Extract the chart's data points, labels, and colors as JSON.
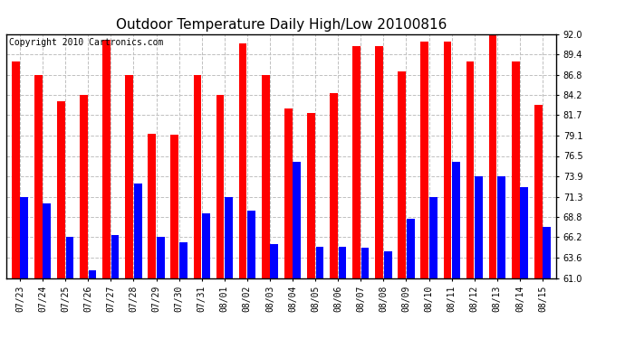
{
  "title": "Outdoor Temperature Daily High/Low 20100816",
  "copyright": "Copyright 2010 Cartronics.com",
  "dates": [
    "07/23",
    "07/24",
    "07/25",
    "07/26",
    "07/27",
    "07/28",
    "07/29",
    "07/30",
    "07/31",
    "08/01",
    "08/02",
    "08/03",
    "08/04",
    "08/05",
    "08/06",
    "08/07",
    "08/08",
    "08/09",
    "08/10",
    "08/11",
    "08/12",
    "08/13",
    "08/14",
    "08/15"
  ],
  "highs": [
    88.5,
    86.8,
    83.5,
    84.2,
    91.2,
    86.8,
    79.3,
    79.2,
    86.8,
    84.2,
    90.8,
    86.8,
    82.5,
    82.0,
    84.5,
    90.5,
    90.5,
    87.2,
    91.0,
    91.0,
    88.5,
    92.0,
    88.5,
    83.0
  ],
  "lows": [
    71.3,
    70.5,
    66.2,
    62.0,
    66.5,
    73.0,
    66.2,
    65.5,
    69.2,
    71.3,
    69.5,
    65.3,
    75.8,
    65.0,
    65.0,
    64.8,
    64.4,
    68.5,
    71.3,
    75.8,
    73.9,
    73.9,
    72.5,
    67.5
  ],
  "ylim_min": 61.0,
  "ylim_max": 92.0,
  "yticks": [
    61.0,
    63.6,
    66.2,
    68.8,
    71.3,
    73.9,
    76.5,
    79.1,
    81.7,
    84.2,
    86.8,
    89.4,
    92.0
  ],
  "high_color": "#ff0000",
  "low_color": "#0000ff",
  "bg_color": "#ffffff",
  "grid_color": "#c0c0c0",
  "title_fontsize": 11,
  "copyright_fontsize": 7,
  "bar_width": 0.35,
  "bar_gap": 0.03
}
